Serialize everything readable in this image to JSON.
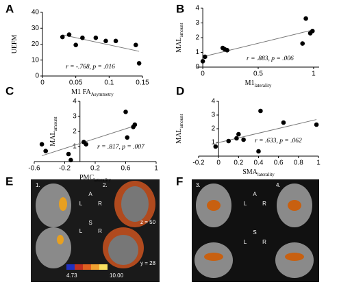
{
  "chart_data": [
    {
      "type": "scatter",
      "panel": "A",
      "ylabel": "UEFM",
      "xlabel": "M1 FA",
      "xlabel_sub": "Asymmetry",
      "annotation": "r = -.768, p = .016",
      "x": [
        0.03,
        0.04,
        0.05,
        0.06,
        0.08,
        0.095,
        0.11,
        0.14,
        0.145
      ],
      "values": [
        24.5,
        26,
        19.5,
        24,
        24,
        22,
        22,
        19.5,
        8
      ],
      "xlim": [
        0,
        0.15
      ],
      "xticks": [
        0,
        0.05,
        0.1,
        0.15
      ],
      "ylim": [
        0,
        40
      ],
      "yticks": [
        0,
        10,
        20,
        30,
        40
      ],
      "color": "#000000"
    },
    {
      "type": "scatter",
      "panel": "B",
      "ylabel": "MAL",
      "ylabel_sub": "amount",
      "xlabel": "M1",
      "xlabel_sub": "laterality",
      "annotation": "r = .883, p = .006",
      "x": [
        0,
        0.02,
        0.18,
        0.2,
        0.22,
        0.9,
        0.93,
        0.97,
        0.99
      ],
      "values": [
        0.4,
        0.7,
        1.3,
        1.2,
        1.15,
        1.6,
        3.3,
        2.3,
        2.45
      ],
      "xlim": [
        -0.05,
        1.05
      ],
      "xticks": [
        0,
        0.5,
        1
      ],
      "ylim": [
        0,
        4
      ],
      "yticks": [
        0,
        1,
        2,
        3,
        4
      ],
      "color": "#000000"
    },
    {
      "type": "scatter",
      "panel": "C",
      "ylabel": "MAL",
      "ylabel_sub": "amount",
      "xlabel": "PMC",
      "xlabel_sub": "laterality",
      "annotation": "r = .817, p = .007",
      "x": [
        -0.5,
        -0.45,
        -0.15,
        -0.12,
        0.05,
        0.08,
        0.6,
        0.62,
        0.7,
        0.72
      ],
      "values": [
        1.15,
        0.7,
        0.5,
        0.1,
        1.3,
        1.15,
        3.3,
        1.6,
        2.3,
        2.45
      ],
      "xlim": [
        -0.6,
        1
      ],
      "xticks": [
        -0.6,
        -0.2,
        0.2,
        0.6,
        1
      ],
      "ylim": [
        0,
        4
      ],
      "yticks": [
        1,
        2,
        3,
        4
      ],
      "color": "#000000"
    },
    {
      "type": "scatter",
      "panel": "D",
      "ylabel": "MAL",
      "ylabel_sub": "amount",
      "xlabel": "SMA",
      "xlabel_sub": "laterality",
      "annotation": "r = .633, p = .062",
      "x": [
        -0.03,
        0.1,
        0.18,
        0.2,
        0.25,
        0.4,
        0.42,
        0.65,
        0.98
      ],
      "values": [
        0.7,
        1.1,
        1.3,
        1.6,
        1.2,
        0.35,
        3.3,
        2.45,
        2.3
      ],
      "xlim": [
        -0.2,
        1
      ],
      "xticks": [
        -0.2,
        0,
        0.2,
        0.4,
        0.6,
        0.8,
        1
      ],
      "ylim": [
        0,
        4
      ],
      "yticks": [
        1,
        2,
        3,
        4
      ],
      "color": "#000000"
    }
  ],
  "images": {
    "E": {
      "panel": "E",
      "view1": "1.",
      "view2": "2.",
      "a": "A",
      "l": "L",
      "r": "R",
      "s": "S",
      "z": "z = 50",
      "y": "y = 28",
      "min": "4.73",
      "max": "10.00"
    },
    "F": {
      "panel": "F",
      "view3": "3.",
      "view4": "4.",
      "a": "A",
      "l": "L",
      "r": "R",
      "s": "S"
    }
  }
}
